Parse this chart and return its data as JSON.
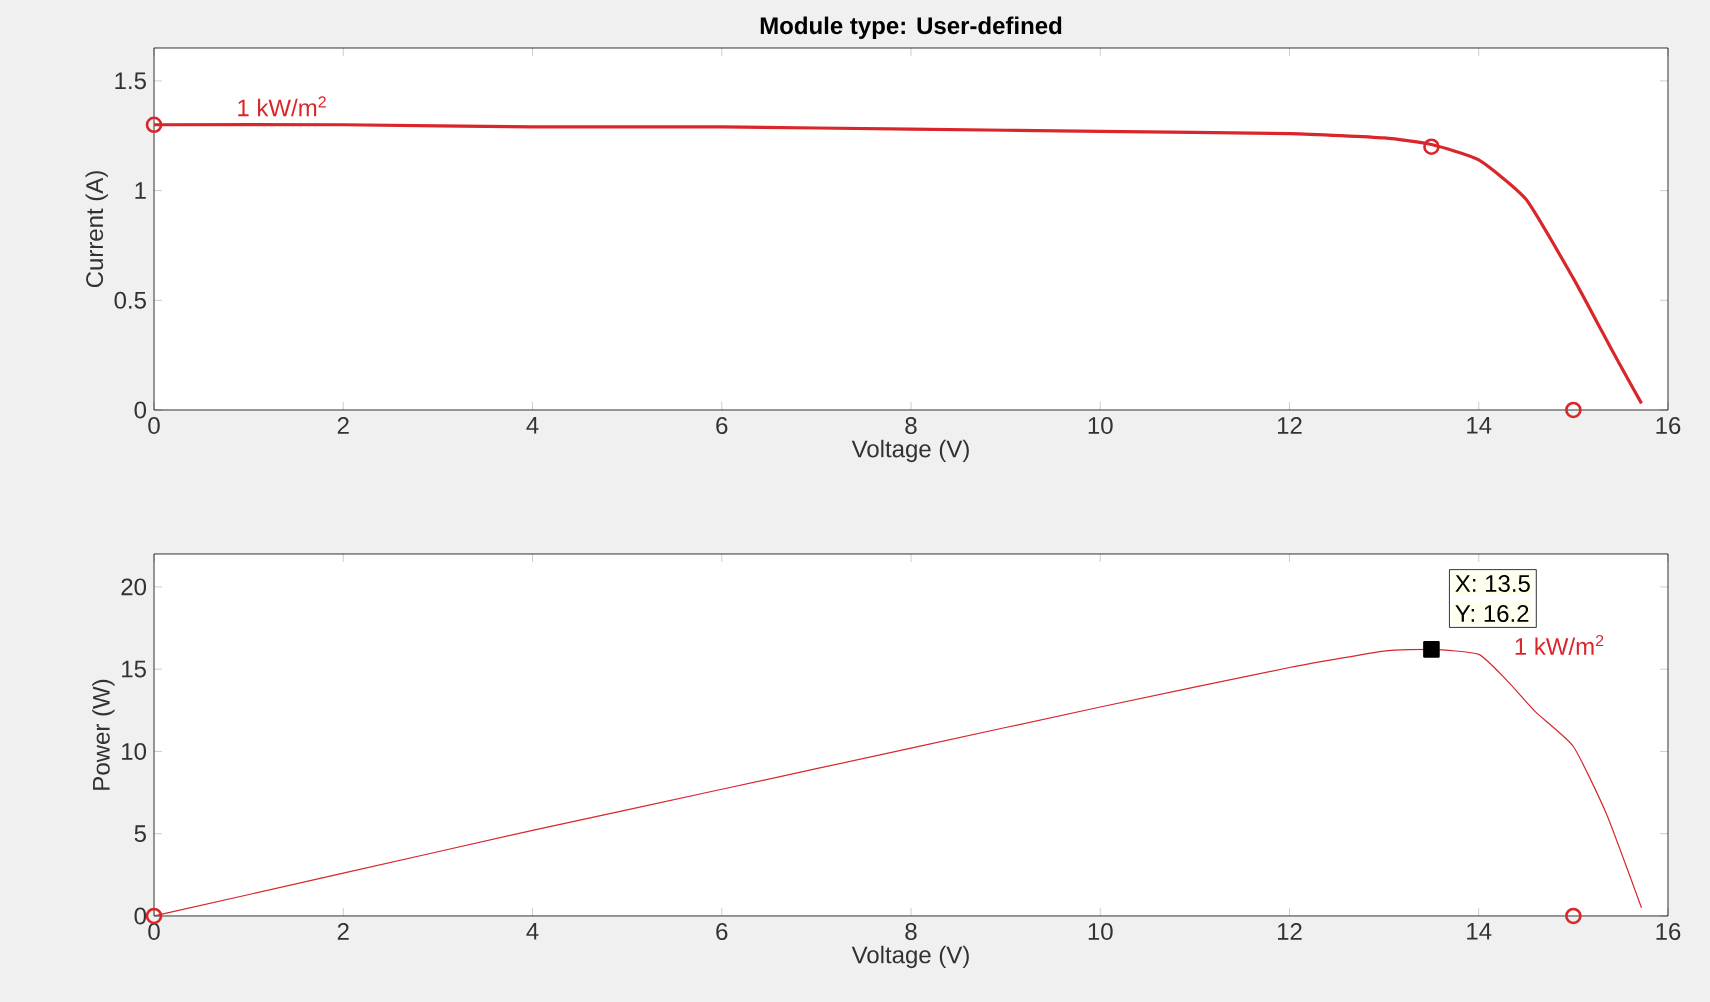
{
  "chart_data": [
    {
      "type": "line",
      "title": "Module type: User-defined",
      "xlabel": "Voltage (V)",
      "ylabel": "Current (A)",
      "xlim": [
        0,
        16
      ],
      "xticks": [
        0,
        2,
        4,
        6,
        8,
        10,
        12,
        14,
        16
      ],
      "ylim": [
        0,
        1.65
      ],
      "yticks": [
        0,
        0.5,
        1,
        1.5
      ],
      "series": [
        {
          "name": "1 kW/m$^{2}$",
          "color": "#d9262b",
          "marker": "none",
          "x": [
            0,
            2,
            4,
            6,
            8,
            10,
            12,
            13,
            13.5,
            14,
            14.5,
            15,
            15.3,
            15.5,
            15.72
          ],
          "values": [
            1.3,
            1.3,
            1.29,
            1.29,
            1.28,
            1.27,
            1.26,
            1.24,
            1.21,
            1.14,
            0.96,
            0.6,
            0.36,
            0.2,
            0.03
          ]
        },
        {
          "type": "scatter",
          "color": "#d9262b",
          "marker": "circle",
          "x": [
            0,
            13.5,
            15
          ],
          "values": [
            1.3,
            1.2,
            0
          ]
        }
      ]
    },
    {
      "type": "line",
      "xlabel": "Voltage (V)",
      "ylabel": "Power (W)",
      "xlim": [
        0,
        16
      ],
      "xticks": [
        0,
        2,
        4,
        6,
        8,
        10,
        12,
        14,
        16
      ],
      "ylim": [
        0,
        22
      ],
      "yticks": [
        0,
        5,
        10,
        15,
        20
      ],
      "annotations": [
        "X: 13.5",
        "Y: 16.2"
      ],
      "series": [
        {
          "name": "1 kW/m$^{2}$",
          "color": "#d9262b",
          "marker": "none",
          "x": [
            0,
            2,
            4,
            6,
            8,
            10,
            12,
            13,
            13.5,
            14,
            14.3,
            14.6,
            15,
            15.35,
            15.72
          ],
          "values": [
            0,
            2.6,
            5.2,
            7.7,
            10.2,
            12.7,
            15.1,
            16.1,
            16.2,
            15.9,
            14.3,
            12.4,
            10.3,
            6.2,
            0.5
          ]
        },
        {
          "type": "scatter",
          "color": "#d9262b",
          "marker": "circle",
          "x": [
            0,
            15
          ],
          "values": [
            0,
            0
          ]
        },
        {
          "type": "scatter",
          "color": "#000000",
          "marker": "square",
          "x": [
            13.5
          ],
          "values": [
            16.2
          ]
        }
      ]
    }
  ]
}
